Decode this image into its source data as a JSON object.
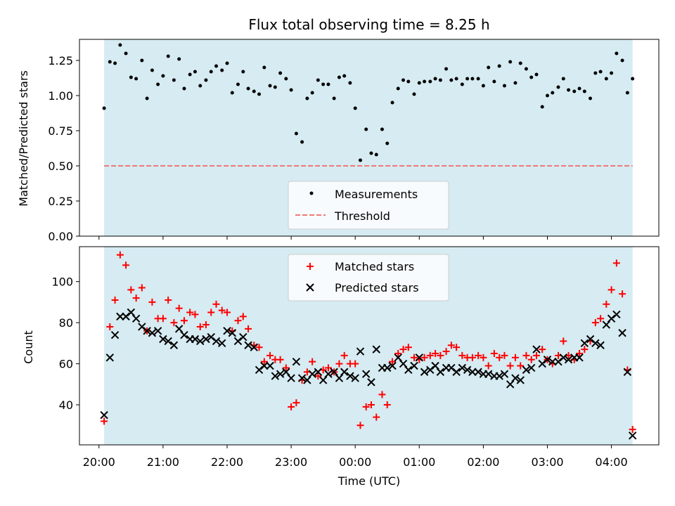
{
  "chart_data": [
    {
      "type": "scatter",
      "title": "Flux total observing time = 8.25 h",
      "xlabel": "",
      "ylabel": "Matched/Predicted stars",
      "ylim": [
        0,
        1.4
      ],
      "yticks": [
        "0.00",
        "0.25",
        "0.50",
        "0.75",
        "1.00",
        "1.25"
      ],
      "observing_window_hours": [
        0.08,
        8.33
      ],
      "threshold": 0.5,
      "legend_position": "lower center",
      "series": [
        {
          "name": "Measurements",
          "marker": "dot",
          "color": "#000000",
          "x": [
            0.08,
            0.17,
            0.25,
            0.33,
            0.42,
            0.5,
            0.58,
            0.67,
            0.75,
            0.83,
            0.92,
            1.0,
            1.08,
            1.17,
            1.25,
            1.33,
            1.42,
            1.5,
            1.58,
            1.67,
            1.75,
            1.83,
            1.92,
            2.0,
            2.08,
            2.17,
            2.25,
            2.33,
            2.42,
            2.5,
            2.58,
            2.67,
            2.75,
            2.83,
            2.92,
            3.0,
            3.08,
            3.17,
            3.25,
            3.33,
            3.42,
            3.5,
            3.58,
            3.67,
            3.75,
            3.83,
            3.92,
            4.0,
            4.08,
            4.17,
            4.25,
            4.33,
            4.42,
            4.5,
            4.58,
            4.67,
            4.75,
            4.83,
            4.92,
            5.0,
            5.08,
            5.17,
            5.25,
            5.33,
            5.42,
            5.5,
            5.58,
            5.67,
            5.75,
            5.83,
            5.92,
            6.0,
            6.08,
            6.17,
            6.25,
            6.33,
            6.42,
            6.5,
            6.58,
            6.67,
            6.75,
            6.83,
            6.92,
            7.0,
            7.08,
            7.17,
            7.25,
            7.33,
            7.42,
            7.5,
            7.58,
            7.67,
            7.75,
            7.83,
            7.92,
            8.0,
            8.08,
            8.17,
            8.25,
            8.33
          ],
          "y": [
            0.91,
            1.24,
            1.23,
            1.36,
            1.3,
            1.13,
            1.12,
            1.25,
            0.98,
            1.18,
            1.08,
            1.14,
            1.28,
            1.11,
            1.26,
            1.05,
            1.15,
            1.17,
            1.07,
            1.11,
            1.17,
            1.21,
            1.18,
            1.23,
            1.02,
            1.08,
            1.17,
            1.05,
            1.03,
            1.01,
            1.2,
            1.07,
            1.06,
            1.16,
            1.12,
            1.04,
            0.73,
            0.67,
            0.98,
            1.02,
            1.11,
            1.08,
            1.08,
            0.98,
            1.13,
            1.14,
            1.09,
            0.91,
            0.54,
            0.76,
            0.59,
            0.58,
            0.76,
            0.66,
            0.95,
            1.05,
            1.11,
            1.1,
            1.01,
            1.09,
            1.1,
            1.1,
            1.12,
            1.11,
            1.19,
            1.11,
            1.12,
            1.08,
            1.12,
            1.12,
            1.12,
            1.07,
            1.2,
            1.1,
            1.21,
            1.07,
            1.24,
            1.09,
            1.23,
            1.19,
            1.13,
            1.15,
            0.92,
            1.0,
            1.02,
            1.06,
            1.12,
            1.04,
            1.03,
            1.05,
            1.03,
            0.98,
            1.16,
            1.17,
            1.12,
            1.16,
            1.3,
            1.25,
            1.02,
            1.12
          ]
        },
        {
          "name": "Threshold",
          "marker": "dashed-line",
          "color": "#f07878",
          "x": [
            0.08,
            8.33
          ],
          "y": [
            0.5,
            0.5
          ]
        }
      ]
    },
    {
      "type": "scatter",
      "title": "",
      "xlabel": "Time (UTC)",
      "ylabel": "Count",
      "ylim": [
        20.5,
        117
      ],
      "yticks": [
        "40",
        "60",
        "80",
        "100"
      ],
      "xticks": [
        "20:00",
        "21:00",
        "22:00",
        "23:00",
        "00:00",
        "01:00",
        "02:00",
        "03:00",
        "04:00"
      ],
      "legend_position": "upper center",
      "series": [
        {
          "name": "Matched stars",
          "marker": "plus",
          "color": "#ff0000",
          "x": [
            0.08,
            0.17,
            0.25,
            0.33,
            0.42,
            0.5,
            0.58,
            0.67,
            0.75,
            0.83,
            0.92,
            1.0,
            1.08,
            1.17,
            1.25,
            1.33,
            1.42,
            1.5,
            1.58,
            1.67,
            1.75,
            1.83,
            1.92,
            2.0,
            2.08,
            2.17,
            2.25,
            2.33,
            2.42,
            2.5,
            2.58,
            2.67,
            2.75,
            2.83,
            2.92,
            3.0,
            3.08,
            3.17,
            3.25,
            3.33,
            3.42,
            3.5,
            3.58,
            3.67,
            3.75,
            3.83,
            3.92,
            4.0,
            4.08,
            4.17,
            4.25,
            4.33,
            4.42,
            4.5,
            4.58,
            4.67,
            4.75,
            4.83,
            4.92,
            5.0,
            5.08,
            5.17,
            5.25,
            5.33,
            5.42,
            5.5,
            5.58,
            5.67,
            5.75,
            5.83,
            5.92,
            6.0,
            6.08,
            6.17,
            6.25,
            6.33,
            6.42,
            6.5,
            6.58,
            6.67,
            6.75,
            6.83,
            6.92,
            7.0,
            7.08,
            7.17,
            7.25,
            7.33,
            7.42,
            7.5,
            7.58,
            7.67,
            7.75,
            7.83,
            7.92,
            8.0,
            8.08,
            8.17,
            8.25,
            8.33
          ],
          "y": [
            32,
            78,
            91,
            113,
            108,
            96,
            92,
            97,
            76,
            90,
            82,
            82,
            91,
            80,
            87,
            81,
            85,
            84,
            78,
            79,
            85,
            89,
            86,
            85,
            76,
            81,
            83,
            77,
            69,
            68,
            61,
            64,
            62,
            62,
            58,
            39,
            41,
            52,
            56,
            61,
            54,
            57,
            58,
            56,
            60,
            64,
            60,
            60,
            30,
            39,
            40,
            34,
            45,
            40,
            61,
            65,
            67,
            68,
            63,
            62,
            63,
            64,
            65,
            64,
            66,
            69,
            68,
            64,
            63,
            63,
            64,
            63,
            59,
            65,
            63,
            64,
            59,
            63,
            59,
            64,
            62,
            64,
            67,
            62,
            60,
            64,
            71,
            64,
            62,
            65,
            67,
            71,
            80,
            82,
            89,
            96,
            109,
            94,
            57,
            28
          ]
        },
        {
          "name": "Predicted stars",
          "marker": "x",
          "color": "#000000",
          "x": [
            0.08,
            0.17,
            0.25,
            0.33,
            0.42,
            0.5,
            0.58,
            0.67,
            0.75,
            0.83,
            0.92,
            1.0,
            1.08,
            1.17,
            1.25,
            1.33,
            1.42,
            1.5,
            1.58,
            1.67,
            1.75,
            1.83,
            1.92,
            2.0,
            2.08,
            2.17,
            2.25,
            2.33,
            2.42,
            2.5,
            2.58,
            2.67,
            2.75,
            2.83,
            2.92,
            3.0,
            3.08,
            3.17,
            3.25,
            3.33,
            3.42,
            3.5,
            3.58,
            3.67,
            3.75,
            3.83,
            3.92,
            4.0,
            4.08,
            4.17,
            4.25,
            4.33,
            4.42,
            4.5,
            4.58,
            4.67,
            4.75,
            4.83,
            4.92,
            5.0,
            5.08,
            5.17,
            5.25,
            5.33,
            5.42,
            5.5,
            5.58,
            5.67,
            5.75,
            5.83,
            5.92,
            6.0,
            6.08,
            6.17,
            6.25,
            6.33,
            6.42,
            6.5,
            6.58,
            6.67,
            6.75,
            6.83,
            6.92,
            7.0,
            7.08,
            7.17,
            7.25,
            7.33,
            7.42,
            7.5,
            7.58,
            7.67,
            7.75,
            7.83,
            7.92,
            8.0,
            8.08,
            8.17,
            8.25,
            8.33
          ],
          "y": [
            35,
            63,
            74,
            83,
            83,
            85,
            82,
            78,
            76,
            75,
            76,
            72,
            71,
            69,
            77,
            74,
            72,
            72,
            71,
            72,
            73,
            71,
            70,
            76,
            75,
            71,
            73,
            69,
            68,
            57,
            59,
            59,
            54,
            55,
            56,
            53,
            61,
            53,
            52,
            55,
            56,
            52,
            55,
            56,
            53,
            56,
            54,
            53,
            66,
            55,
            51,
            67,
            58,
            58,
            59,
            63,
            60,
            57,
            59,
            63,
            56,
            57,
            59,
            56,
            58,
            58,
            56,
            58,
            57,
            56,
            56,
            55,
            55,
            54,
            54,
            55,
            50,
            53,
            52,
            57,
            58,
            67,
            60,
            62,
            61,
            61,
            63,
            62,
            63,
            63,
            70,
            72,
            70,
            69,
            79,
            82,
            84,
            75,
            56,
            25
          ]
        }
      ]
    }
  ]
}
